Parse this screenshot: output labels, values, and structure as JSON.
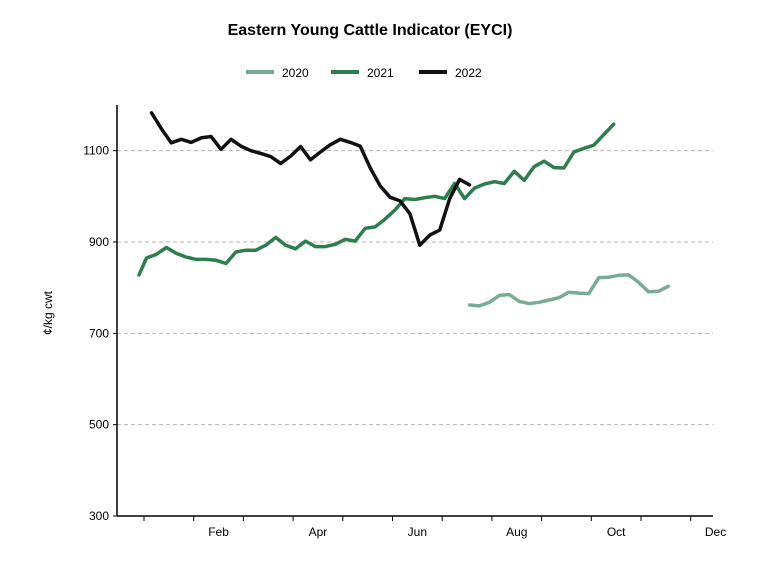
{
  "chart_data": {
    "type": "line",
    "title": "Eastern Young Cattle Indicator (EYCI)",
    "xlabel": "",
    "ylabel": "¢/kg cwt",
    "ylim": [
      300,
      1200
    ],
    "yticks": [
      300,
      500,
      700,
      900,
      1100
    ],
    "x_ticks": [
      {
        "label": "Feb",
        "month": 2
      },
      {
        "label": "Apr",
        "month": 4
      },
      {
        "label": "Jun",
        "month": 6
      },
      {
        "label": "Aug",
        "month": 8
      },
      {
        "label": "Oct",
        "month": 10
      },
      {
        "label": "Dec",
        "month": 12
      }
    ],
    "grid": "horizontal dashed",
    "legend_position": "top-center",
    "series": [
      {
        "name": "2020",
        "color": "#7aab95",
        "points": [
          [
            7.55,
            762
          ],
          [
            7.75,
            760
          ],
          [
            7.95,
            768
          ],
          [
            8.15,
            783
          ],
          [
            8.35,
            785
          ],
          [
            8.55,
            770
          ],
          [
            8.75,
            765
          ],
          [
            8.95,
            768
          ],
          [
            9.15,
            773
          ],
          [
            9.35,
            778
          ],
          [
            9.55,
            790
          ],
          [
            9.75,
            788
          ],
          [
            9.95,
            787
          ],
          [
            10.15,
            822
          ],
          [
            10.35,
            823
          ],
          [
            10.55,
            827
          ],
          [
            10.75,
            828
          ],
          [
            10.95,
            812
          ],
          [
            11.15,
            791
          ],
          [
            11.35,
            792
          ],
          [
            11.55,
            803
          ]
        ]
      },
      {
        "name": "2021",
        "color": "#2e7d4f",
        "points": [
          [
            0.9,
            828
          ],
          [
            1.05,
            865
          ],
          [
            1.25,
            873
          ],
          [
            1.45,
            888
          ],
          [
            1.65,
            875
          ],
          [
            1.85,
            867
          ],
          [
            2.05,
            862
          ],
          [
            2.25,
            862
          ],
          [
            2.45,
            860
          ],
          [
            2.65,
            853
          ],
          [
            2.85,
            878
          ],
          [
            3.05,
            882
          ],
          [
            3.25,
            882
          ],
          [
            3.45,
            893
          ],
          [
            3.65,
            910
          ],
          [
            3.85,
            893
          ],
          [
            4.05,
            885
          ],
          [
            4.25,
            902
          ],
          [
            4.45,
            890
          ],
          [
            4.65,
            890
          ],
          [
            4.85,
            895
          ],
          [
            5.05,
            906
          ],
          [
            5.25,
            902
          ],
          [
            5.45,
            930
          ],
          [
            5.65,
            933
          ],
          [
            5.85,
            950
          ],
          [
            6.05,
            970
          ],
          [
            6.25,
            995
          ],
          [
            6.45,
            993
          ],
          [
            6.65,
            997
          ],
          [
            6.85,
            1000
          ],
          [
            7.05,
            995
          ],
          [
            7.25,
            1028
          ],
          [
            7.45,
            995
          ],
          [
            7.65,
            1018
          ],
          [
            7.85,
            1027
          ],
          [
            8.05,
            1032
          ],
          [
            8.25,
            1028
          ],
          [
            8.45,
            1055
          ],
          [
            8.65,
            1035
          ],
          [
            8.85,
            1065
          ],
          [
            9.05,
            1077
          ],
          [
            9.25,
            1063
          ],
          [
            9.45,
            1062
          ],
          [
            9.65,
            1097
          ],
          [
            9.85,
            1105
          ],
          [
            10.05,
            1112
          ],
          [
            10.25,
            1135
          ],
          [
            10.45,
            1158
          ]
        ]
      },
      {
        "name": "2022",
        "color": "#111111",
        "points": [
          [
            1.15,
            1183
          ],
          [
            1.35,
            1148
          ],
          [
            1.55,
            1117
          ],
          [
            1.75,
            1125
          ],
          [
            1.95,
            1118
          ],
          [
            2.15,
            1128
          ],
          [
            2.35,
            1131
          ],
          [
            2.55,
            1103
          ],
          [
            2.75,
            1125
          ],
          [
            2.95,
            1110
          ],
          [
            3.15,
            1100
          ],
          [
            3.35,
            1094
          ],
          [
            3.55,
            1087
          ],
          [
            3.75,
            1072
          ],
          [
            3.95,
            1088
          ],
          [
            4.15,
            1109
          ],
          [
            4.35,
            1080
          ],
          [
            4.55,
            1097
          ],
          [
            4.75,
            1113
          ],
          [
            4.95,
            1125
          ],
          [
            5.15,
            1118
          ],
          [
            5.35,
            1110
          ],
          [
            5.55,
            1063
          ],
          [
            5.75,
            1023
          ],
          [
            5.95,
            998
          ],
          [
            6.15,
            990
          ],
          [
            6.35,
            962
          ],
          [
            6.55,
            893
          ],
          [
            6.75,
            915
          ],
          [
            6.95,
            926
          ],
          [
            7.15,
            995
          ],
          [
            7.35,
            1037
          ],
          [
            7.55,
            1025
          ]
        ]
      }
    ]
  }
}
